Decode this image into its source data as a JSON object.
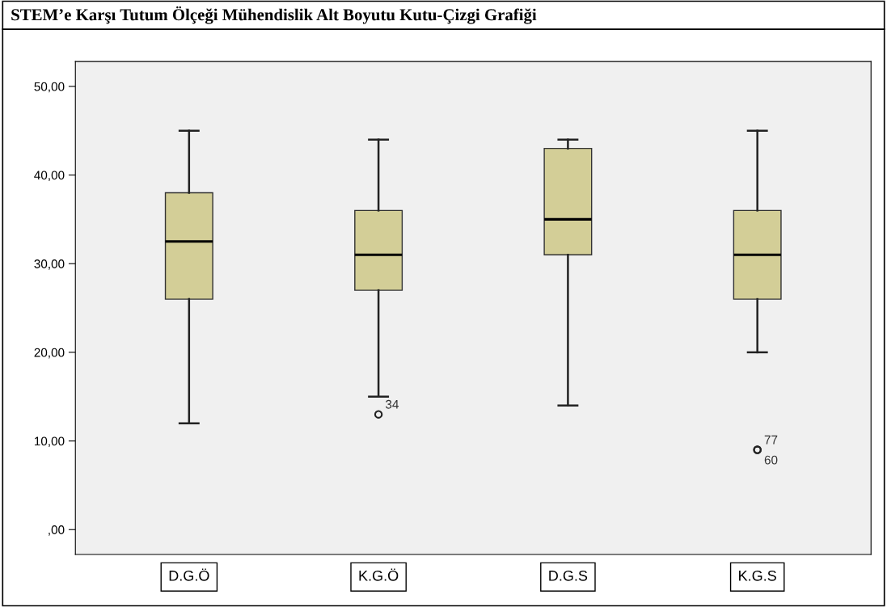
{
  "chart_data": {
    "type": "box",
    "title": "STEM’e Karşı Tutum Ölçeği Mühendislik Alt Boyutu Kutu-Çizgi Grafiği",
    "categories": [
      "D.G.Ö",
      "K.G.Ö",
      "D.G.S",
      "K.G.S"
    ],
    "boxes": [
      {
        "low": 12,
        "q1": 26,
        "median": 32.5,
        "q3": 38,
        "high": 45
      },
      {
        "low": 15,
        "q1": 27,
        "median": 31,
        "q3": 36,
        "high": 44,
        "outliers": [
          13
        ]
      },
      {
        "low": 14,
        "q1": 31,
        "median": 35,
        "q3": 43,
        "high": 44
      },
      {
        "low": 20,
        "q1": 26,
        "median": 31,
        "q3": 36,
        "high": 45,
        "outliers": [
          9,
          9
        ]
      }
    ],
    "color": "#d3ce97",
    "ylim": [
      -2.8,
      52.8
    ],
    "yticks": [
      {
        "value": 0,
        "label": ",00"
      },
      {
        "value": 10,
        "label": "10,00"
      },
      {
        "value": 20,
        "label": "20,00"
      },
      {
        "value": 30,
        "label": "30,00"
      },
      {
        "value": 40,
        "label": "40,00"
      },
      {
        "value": 50,
        "label": "50,00"
      }
    ],
    "annotations": [
      "34",
      "77",
      "60"
    ],
    "grid": false
  }
}
